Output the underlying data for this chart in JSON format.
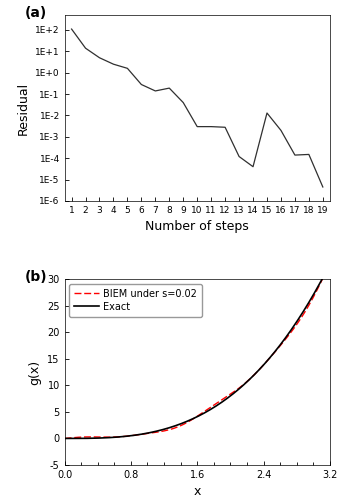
{
  "panel_a": {
    "steps": [
      1,
      2,
      3,
      4,
      5,
      6,
      7,
      8,
      9,
      10,
      11,
      12,
      13,
      14,
      15,
      16,
      17,
      18,
      19
    ],
    "residuals": [
      110.0,
      14.0,
      5.0,
      2.5,
      1.6,
      0.28,
      0.14,
      0.19,
      0.04,
      0.003,
      0.003,
      0.0028,
      0.00012,
      4e-05,
      0.013,
      0.002,
      0.00014,
      0.00015,
      4.5e-06
    ],
    "ylabel": "Residual",
    "xlabel": "Number of steps",
    "yticks": [
      1e-06,
      1e-05,
      0.0001,
      0.001,
      0.01,
      0.1,
      1.0,
      10.0,
      100.0
    ],
    "ytick_labels": [
      "1E-6",
      "1E-5",
      "1E-4",
      "1E-3",
      "1E-2",
      "1E-1",
      "1E+0",
      "1E+1",
      "1E+2"
    ],
    "label": "(a)"
  },
  "panel_b": {
    "ylabel": "g(x)",
    "xlabel": "x",
    "xlim": [
      0.0,
      3.2
    ],
    "ylim": [
      -5,
      30
    ],
    "yticks": [
      -5,
      0,
      5,
      10,
      15,
      20,
      25,
      30
    ],
    "xticks": [
      0.0,
      0.8,
      1.6,
      2.4,
      3.2
    ],
    "xtick_labels": [
      "0.0",
      "0.8",
      "1.6",
      "2.4",
      "3.2"
    ],
    "label": "(b)",
    "legend_biem": "BIEM under s=0.02",
    "legend_exact": "Exact",
    "line_color_biem": "#ff0000",
    "line_color_exact": "#000000"
  },
  "fig_background": "#ffffff",
  "line_color": "#303030",
  "fontsize": 9
}
